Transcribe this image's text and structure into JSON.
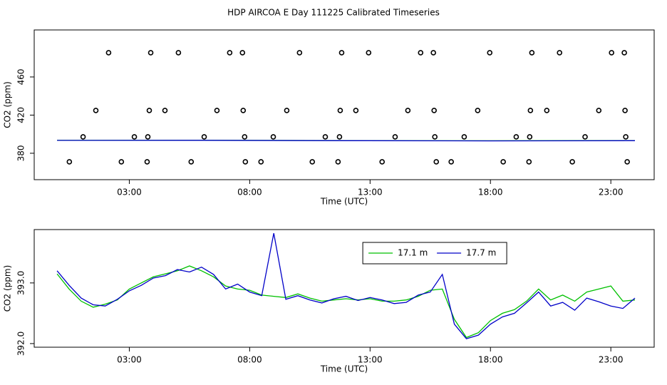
{
  "chart_data": [
    {
      "type": "line",
      "title": "HDP AIRCOA E  Day 111225  Calibrated Timeseries",
      "x_label": "Time (UTC)",
      "y_label": "CO2 (ppm)",
      "xlim": [
        -0.95,
        24.8
      ],
      "ylim": [
        352.3,
        509.3
      ],
      "xticks": [
        {
          "value": 3,
          "label": "03:00"
        },
        {
          "value": 8,
          "label": "08:00"
        },
        {
          "value": 13,
          "label": "13:00"
        },
        {
          "value": 18,
          "label": "18:00"
        },
        {
          "value": 23,
          "label": "23:00"
        }
      ],
      "yticks": [
        380,
        420,
        460
      ],
      "series": [
        {
          "type": "scatter",
          "color": "#000000",
          "x": [
            2.14,
            3.89,
            5.04,
            7.17,
            7.7,
            10.07,
            11.82,
            12.94,
            15.1,
            15.63,
            17.97,
            19.72,
            20.87,
            23.03,
            23.56,
            1.61,
            3.83,
            4.48,
            6.64,
            7.73,
            9.54,
            11.76,
            12.41,
            14.57,
            15.66,
            17.47,
            19.66,
            20.34,
            22.5,
            23.59,
            1.08,
            3.21,
            3.77,
            6.11,
            7.79,
            8.98,
            11.14,
            11.73,
            14.04,
            15.69,
            16.91,
            19.07,
            19.63,
            21.93,
            23.62,
            0.51,
            2.67,
            3.74,
            5.57,
            7.82,
            8.47,
            10.6,
            11.67,
            13.5,
            15.75,
            16.37,
            18.53,
            19.6,
            21.4,
            23.68
          ],
          "values": [
            485.4,
            485.4,
            485.4,
            485.4,
            485.4,
            485.4,
            485.4,
            485.4,
            485.4,
            485.4,
            485.4,
            485.4,
            485.4,
            485.4,
            485.4,
            424.9,
            424.9,
            424.9,
            424.9,
            424.9,
            424.9,
            424.9,
            424.9,
            424.9,
            424.9,
            424.9,
            424.9,
            424.9,
            424.9,
            424.9,
            397.2,
            397.2,
            397.2,
            397.2,
            397.2,
            397.2,
            397.2,
            397.2,
            397.2,
            397.2,
            397.2,
            397.2,
            397.2,
            397.2,
            397.2,
            371.0,
            371.0,
            371.0,
            371.0,
            371.0,
            371.0,
            371.0,
            371.0,
            371.0,
            371.0,
            371.0,
            371.0,
            371.0,
            371.0,
            371.0
          ]
        },
        {
          "type": "line",
          "color": "#00c000",
          "x": [
            0,
            6,
            12,
            18,
            24
          ],
          "values": [
            393.6,
            393.7,
            393.3,
            393.1,
            393.3
          ]
        },
        {
          "type": "line",
          "color": "#0000c8",
          "x": [
            0,
            6,
            12,
            18,
            24
          ],
          "values": [
            393.5,
            393.6,
            393.2,
            393.0,
            393.2
          ]
        }
      ]
    },
    {
      "type": "line",
      "x_label": "Time (UTC)",
      "y_label": "CO2 (ppm)",
      "legend": "top",
      "xlim": [
        -0.95,
        24.8
      ],
      "ylim": [
        391.94,
        393.88
      ],
      "xticks": [
        {
          "value": 3,
          "label": "03:00"
        },
        {
          "value": 8,
          "label": "08:00"
        },
        {
          "value": 13,
          "label": "13:00"
        },
        {
          "value": 18,
          "label": "18:00"
        },
        {
          "value": 23,
          "label": "23:00"
        }
      ],
      "yticks": [
        {
          "value": 392,
          "label": "392.0"
        },
        {
          "value": 393,
          "label": "393.0"
        }
      ],
      "x": [
        0,
        0.5,
        1,
        1.5,
        2,
        2.5,
        3,
        3.5,
        4,
        4.5,
        5,
        5.5,
        6,
        6.5,
        7,
        7.5,
        8,
        8.5,
        9,
        9.5,
        10,
        10.5,
        11,
        11.5,
        12,
        12.5,
        13,
        13.5,
        14,
        14.5,
        15,
        15.5,
        16,
        16.5,
        17,
        17.5,
        18,
        18.5,
        19,
        19.5,
        20,
        20.5,
        21,
        21.5,
        22,
        22.5,
        23,
        23.5,
        24
      ],
      "series": [
        {
          "type": "line",
          "name": "17.1 m",
          "color": "#00c000",
          "values": [
            393.15,
            392.9,
            392.7,
            392.6,
            392.65,
            392.72,
            392.9,
            393.0,
            393.1,
            393.15,
            393.2,
            393.28,
            393.2,
            393.1,
            392.95,
            392.9,
            392.88,
            392.8,
            392.78,
            392.76,
            392.82,
            392.75,
            392.7,
            392.72,
            392.74,
            392.72,
            392.74,
            392.7,
            392.7,
            392.72,
            392.78,
            392.88,
            392.9,
            392.4,
            392.1,
            392.18,
            392.38,
            392.5,
            392.56,
            392.7,
            392.9,
            392.72,
            392.8,
            392.7,
            392.85,
            392.9,
            392.95,
            392.7,
            392.72
          ]
        },
        {
          "type": "line",
          "name": "17.7 m",
          "color": "#0000c8",
          "values": [
            393.2,
            392.96,
            392.75,
            392.64,
            392.62,
            392.73,
            392.87,
            392.96,
            393.08,
            393.12,
            393.22,
            393.18,
            393.26,
            393.14,
            392.9,
            392.98,
            392.85,
            392.79,
            393.82,
            392.73,
            392.79,
            392.72,
            392.67,
            392.74,
            392.78,
            392.71,
            392.76,
            392.72,
            392.66,
            392.68,
            392.8,
            392.85,
            393.14,
            392.32,
            392.08,
            392.14,
            392.32,
            392.44,
            392.5,
            392.67,
            392.85,
            392.62,
            392.68,
            392.55,
            392.75,
            392.69,
            392.62,
            392.58,
            392.75
          ]
        }
      ]
    }
  ]
}
